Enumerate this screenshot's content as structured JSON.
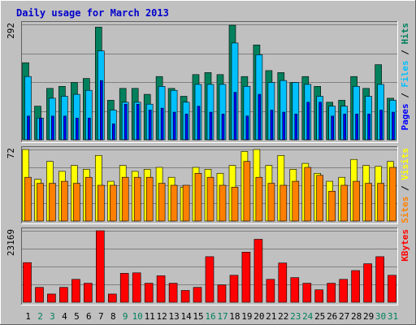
{
  "colors": {
    "background": "#c0c0c0",
    "panel": "#c0c0c0",
    "title": "#0000cc",
    "grid": "#808080",
    "hits": "#00805c",
    "files": "#00c0ff",
    "pages": "#0000ff",
    "visits": "#ffff00",
    "sites": "#ff8000",
    "kbytes": "#ff0000",
    "weekend_label": "#00805c",
    "day_label": "#000000"
  },
  "chart_data": {
    "type": "bar",
    "title": "Daily usage for March 2013",
    "x": [
      1,
      2,
      3,
      4,
      5,
      6,
      7,
      8,
      9,
      10,
      11,
      12,
      13,
      14,
      15,
      16,
      17,
      18,
      19,
      20,
      21,
      22,
      23,
      24,
      25,
      26,
      27,
      28,
      29,
      30,
      31
    ],
    "weekend_days": [
      2,
      3,
      9,
      10,
      16,
      17,
      23,
      24,
      30,
      31
    ],
    "panels": [
      {
        "id": "hits",
        "ymax_label": "292",
        "ymax": 292,
        "legend": [
          {
            "text": "Pages",
            "color": "pages"
          },
          {
            "text": " / ",
            "color": "day_label"
          },
          {
            "text": "Files",
            "color": "files"
          },
          {
            "text": " / ",
            "color": "day_label"
          },
          {
            "text": "Hits",
            "color": "hits"
          }
        ],
        "series": [
          {
            "name": "Hits",
            "color": "hits",
            "values": [
              195,
              85,
              130,
              135,
              145,
              155,
              285,
              100,
              130,
              130,
              115,
              160,
              130,
              110,
              165,
              170,
              165,
              290,
              160,
              240,
              175,
              170,
              145,
              160,
              135,
              95,
              100,
              160,
              130,
              190,
              105
            ]
          },
          {
            "name": "Files",
            "color": "files",
            "values": [
              160,
              55,
              105,
              110,
              115,
              125,
              225,
              75,
              95,
              95,
              90,
              135,
              125,
              95,
              140,
              140,
              140,
              245,
              135,
              215,
              145,
              150,
              145,
              140,
              110,
              85,
              85,
              135,
              110,
              140,
              100
            ]
          },
          {
            "name": "Pages",
            "color": "pages",
            "values": [
              60,
              55,
              60,
              60,
              55,
              55,
              150,
              40,
              90,
              90,
              75,
              80,
              70,
              65,
              85,
              70,
              65,
              120,
              60,
              115,
              75,
              70,
              65,
              95,
              95,
              60,
              65,
              65,
              65,
              75,
              70
            ]
          }
        ]
      },
      {
        "id": "visits",
        "ymax_label": "72",
        "ymax": 72,
        "legend": [
          {
            "text": "Sites",
            "color": "sites"
          },
          {
            "text": " / ",
            "color": "day_label"
          },
          {
            "text": "Visits",
            "color": "visits"
          }
        ],
        "series": [
          {
            "name": "Visits",
            "color": "visits",
            "values": [
              72,
              42,
              60,
              50,
              56,
              52,
              66,
              40,
              56,
              50,
              52,
              54,
              44,
              34,
              54,
              52,
              48,
              56,
              70,
              72,
              56,
              66,
              52,
              58,
              48,
              40,
              44,
              62,
              56,
              55,
              60
            ]
          },
          {
            "name": "Sites",
            "color": "sites",
            "values": [
              44,
              38,
              38,
              40,
              38,
              44,
              36,
              36,
              44,
              44,
              44,
              38,
              36,
              36,
              48,
              44,
              36,
              34,
              60,
              44,
              38,
              36,
              40,
              54,
              46,
              30,
              36,
              40,
              38,
              38,
              54
            ]
          }
        ]
      },
      {
        "id": "kbytes",
        "ymax_label": "23169",
        "ymax": 23169,
        "legend": [
          {
            "text": "KBytes",
            "color": "kbytes"
          }
        ],
        "series": [
          {
            "name": "KBytes",
            "color": "kbytes",
            "values": [
              12850,
              4820,
              2660,
              4820,
              7420,
              6160,
              23169,
              2660,
              9380,
              9540,
              6160,
              8570,
              6160,
              3830,
              4820,
              14770,
              5610,
              8750,
              16250,
              20410,
              7420,
              12710,
              7990,
              6160,
              4020,
              6160,
              7420,
              10260,
              12490,
              14770,
              8750
            ]
          }
        ]
      }
    ]
  }
}
